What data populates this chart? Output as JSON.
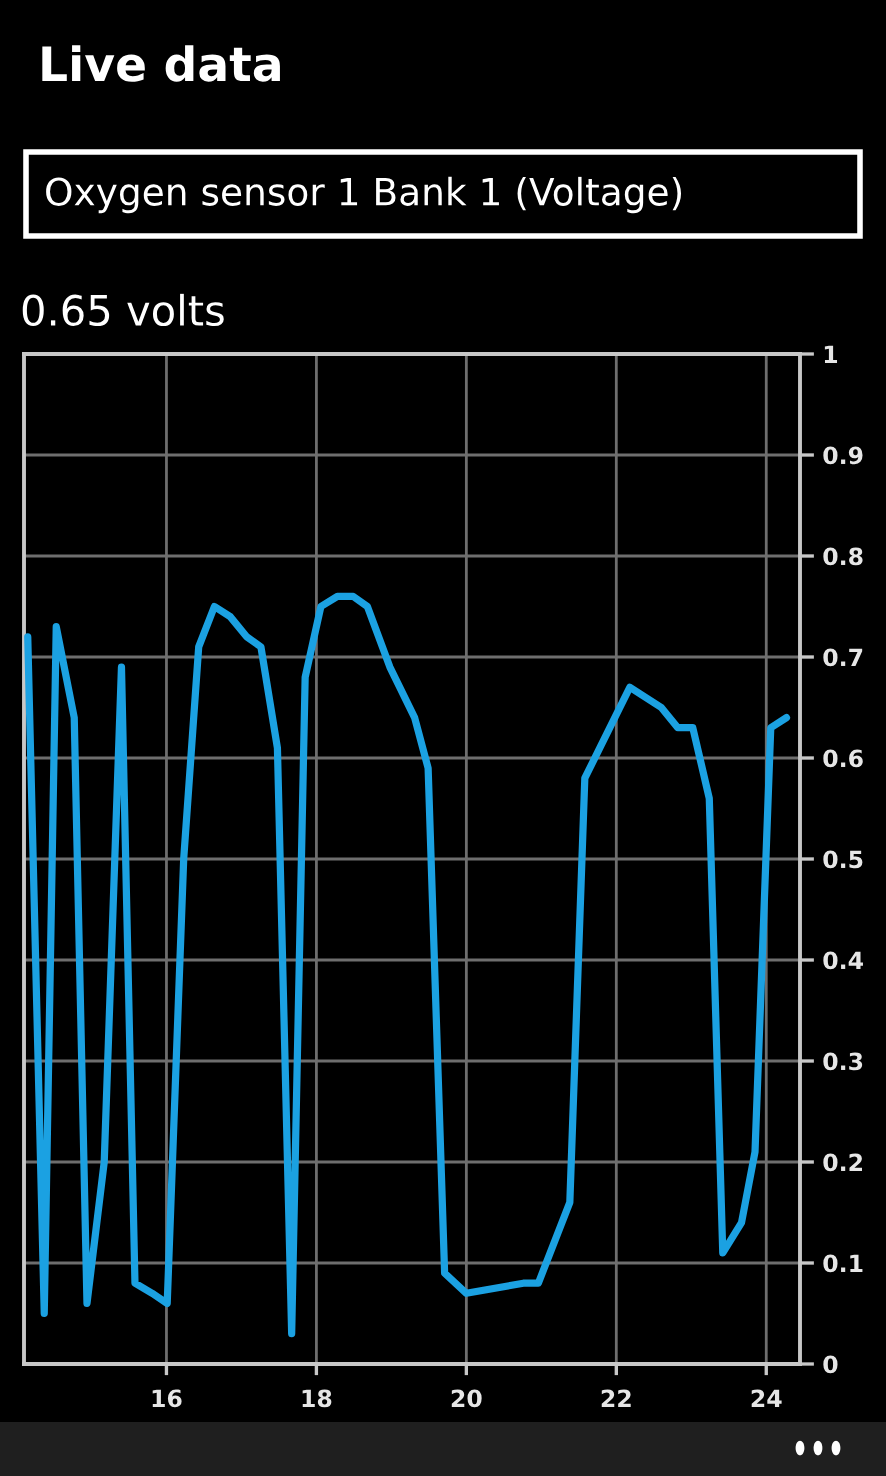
{
  "chart_data": {
    "type": "line",
    "title": "Live data",
    "subtitle": "Oxygen sensor 1 Bank 1 (Voltage)",
    "annotations": [
      "0.65 volts"
    ],
    "x": [
      14.15,
      14.37,
      14.53,
      14.77,
      14.94,
      15.17,
      15.4,
      15.58,
      15.81,
      16.01,
      16.23,
      16.43,
      16.64,
      16.85,
      17.07,
      17.26,
      17.48,
      17.67,
      17.85,
      18.06,
      18.28,
      18.49,
      18.68,
      18.98,
      19.31,
      19.49,
      19.71,
      20.0,
      20.76,
      20.96,
      21.38,
      21.58,
      21.78,
      22.18,
      22.6,
      22.82,
      23.02,
      23.24,
      23.42,
      23.67,
      23.85,
      24.06,
      24.27
    ],
    "series": [
      {
        "color": "#1ba1e2",
        "values": [
          0.72,
          0.05,
          0.73,
          0.64,
          0.06,
          0.2,
          0.69,
          0.08,
          0.07,
          0.06,
          0.5,
          0.71,
          0.75,
          0.74,
          0.72,
          0.71,
          0.61,
          0.03,
          0.68,
          0.75,
          0.76,
          0.76,
          0.75,
          0.69,
          0.64,
          0.59,
          0.09,
          0.07,
          0.08,
          0.08,
          0.16,
          0.58,
          0.61,
          0.67,
          0.65,
          0.63,
          0.63,
          0.56,
          0.11,
          0.14,
          0.21,
          0.63,
          0.64
        ]
      }
    ],
    "xlim": [
      14.1,
      24.45
    ],
    "ylim": [
      0,
      1
    ],
    "xticks": [
      16,
      18,
      20,
      22,
      24
    ],
    "yticks": [
      0,
      0.1,
      0.2,
      0.3,
      0.4,
      0.5,
      0.6,
      0.7,
      0.8,
      0.9,
      1
    ],
    "grid": true
  }
}
